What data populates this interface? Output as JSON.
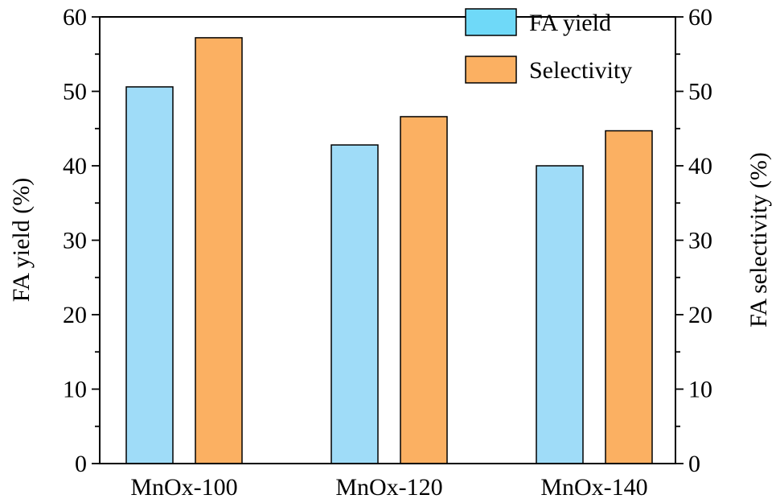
{
  "chart_data": {
    "type": "bar",
    "categories": [
      "MnOx-100",
      "MnOx-120",
      "MnOx-140"
    ],
    "series": [
      {
        "name": "FA yield",
        "values": [
          50.6,
          42.8,
          40.0
        ],
        "color": "#9fdcf8",
        "axis": "left"
      },
      {
        "name": "Selectivity",
        "values": [
          57.2,
          46.6,
          44.7
        ],
        "color": "#fbb062",
        "axis": "right"
      }
    ],
    "ylabel": "FA yield (%)",
    "y2label": "FA selectivity (%)",
    "ylim": [
      0,
      60
    ],
    "y2lim": [
      0,
      60
    ],
    "yticks": [
      "0",
      "10",
      "20",
      "30",
      "40",
      "50",
      "60"
    ],
    "y2ticks": [
      "0",
      "10",
      "20",
      "30",
      "40",
      "50",
      "60"
    ],
    "legend": {
      "position": "top-right",
      "items": [
        {
          "label": "FA yield",
          "color": "#6fd9f8"
        },
        {
          "label": "Selectivity",
          "color": "#fbb062"
        }
      ]
    },
    "grid": false
  }
}
